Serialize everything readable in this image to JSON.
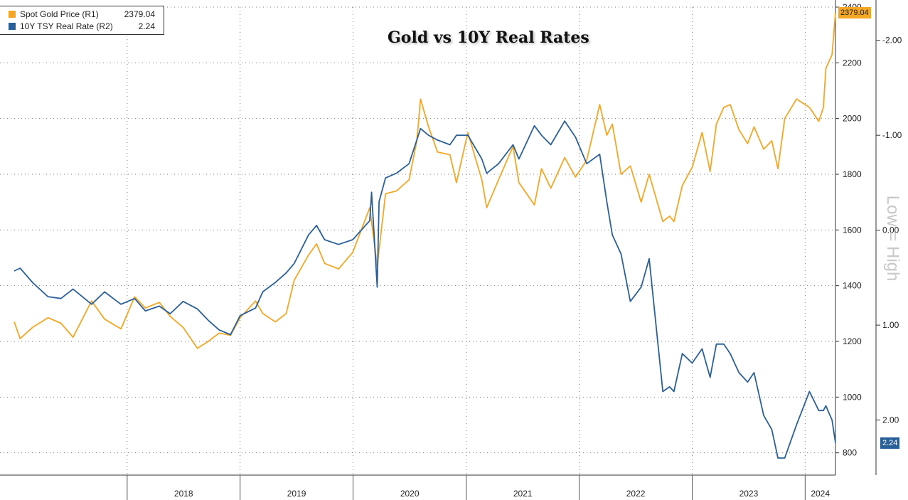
{
  "chart_data": {
    "type": "line",
    "title": "Gold vs 10Y Real Rates",
    "annotation": "Low = High",
    "x_range": [
      "2017-01-01",
      "2024-04-08"
    ],
    "x_tick_labels": [
      "2018",
      "2019",
      "2020",
      "2021",
      "2022",
      "2023",
      "2024"
    ],
    "grid": true,
    "legend_position": "top-left",
    "axes": {
      "r1": {
        "series": "Spot Gold Price (R1)",
        "range": [
          720,
          2400
        ],
        "ticks": [
          800,
          1000,
          1200,
          1400,
          1600,
          1800,
          2000,
          2200,
          2400
        ],
        "tick_labels": [
          "800",
          "1000",
          "1200",
          "1400",
          "1600",
          "1800",
          "2000",
          "2200",
          "2400"
        ]
      },
      "r2": {
        "series": "10Y TSY Real Rate (R2)",
        "inverted": true,
        "range": [
          -2.35,
          2.58
        ],
        "ticks": [
          -2.0,
          -1.0,
          0.0,
          1.0,
          2.0
        ],
        "tick_labels": [
          "-2.00",
          "-1.00",
          "0.00",
          "1.00",
          "2.00"
        ]
      }
    },
    "series": [
      {
        "name": "Spot Gold Price (R1)",
        "axis": "r1",
        "color": "#f5a623",
        "last_value": "2379.04",
        "points": [
          [
            "2017-01-01",
            1270
          ],
          [
            "2017-01-20",
            1210
          ],
          [
            "2017-03-01",
            1250
          ],
          [
            "2017-04-20",
            1285
          ],
          [
            "2017-06-01",
            1265
          ],
          [
            "2017-07-10",
            1215
          ],
          [
            "2017-09-08",
            1345
          ],
          [
            "2017-10-20",
            1280
          ],
          [
            "2017-12-12",
            1245
          ],
          [
            "2018-01-25",
            1360
          ],
          [
            "2018-03-01",
            1320
          ],
          [
            "2018-04-15",
            1340
          ],
          [
            "2018-05-20",
            1290
          ],
          [
            "2018-07-01",
            1250
          ],
          [
            "2018-08-16",
            1175
          ],
          [
            "2018-09-20",
            1200
          ],
          [
            "2018-10-25",
            1230
          ],
          [
            "2018-12-01",
            1222
          ],
          [
            "2019-01-01",
            1285
          ],
          [
            "2019-02-20",
            1345
          ],
          [
            "2019-03-15",
            1300
          ],
          [
            "2019-04-25",
            1270
          ],
          [
            "2019-05-30",
            1300
          ],
          [
            "2019-06-25",
            1420
          ],
          [
            "2019-08-10",
            1510
          ],
          [
            "2019-09-05",
            1550
          ],
          [
            "2019-10-01",
            1480
          ],
          [
            "2019-11-15",
            1460
          ],
          [
            "2019-12-31",
            1520
          ],
          [
            "2020-02-24",
            1680
          ],
          [
            "2020-03-19",
            1470
          ],
          [
            "2020-04-15",
            1730
          ],
          [
            "2020-05-20",
            1740
          ],
          [
            "2020-06-30",
            1780
          ],
          [
            "2020-07-25",
            1920
          ],
          [
            "2020-08-06",
            2070
          ],
          [
            "2020-09-01",
            1970
          ],
          [
            "2020-09-30",
            1880
          ],
          [
            "2020-11-09",
            1870
          ],
          [
            "2020-11-30",
            1770
          ],
          [
            "2021-01-06",
            1950
          ],
          [
            "2021-02-20",
            1780
          ],
          [
            "2021-03-08",
            1680
          ],
          [
            "2021-04-15",
            1780
          ],
          [
            "2021-06-01",
            1900
          ],
          [
            "2021-06-20",
            1770
          ],
          [
            "2021-08-09",
            1690
          ],
          [
            "2021-09-01",
            1820
          ],
          [
            "2021-10-01",
            1750
          ],
          [
            "2021-11-15",
            1860
          ],
          [
            "2021-12-20",
            1790
          ],
          [
            "2022-01-25",
            1850
          ],
          [
            "2022-03-08",
            2050
          ],
          [
            "2022-03-31",
            1940
          ],
          [
            "2022-04-18",
            1980
          ],
          [
            "2022-05-16",
            1800
          ],
          [
            "2022-06-15",
            1830
          ],
          [
            "2022-07-20",
            1700
          ],
          [
            "2022-08-15",
            1800
          ],
          [
            "2022-09-28",
            1630
          ],
          [
            "2022-10-20",
            1650
          ],
          [
            "2022-11-03",
            1630
          ],
          [
            "2022-11-30",
            1760
          ],
          [
            "2023-01-01",
            1825
          ],
          [
            "2023-02-02",
            1950
          ],
          [
            "2023-02-28",
            1810
          ],
          [
            "2023-03-20",
            1980
          ],
          [
            "2023-04-13",
            2040
          ],
          [
            "2023-05-04",
            2050
          ],
          [
            "2023-06-01",
            1960
          ],
          [
            "2023-06-29",
            1910
          ],
          [
            "2023-07-20",
            1970
          ],
          [
            "2023-08-20",
            1890
          ],
          [
            "2023-09-15",
            1920
          ],
          [
            "2023-10-05",
            1820
          ],
          [
            "2023-10-27",
            2000
          ],
          [
            "2023-12-04",
            2070
          ],
          [
            "2024-01-15",
            2040
          ],
          [
            "2024-02-14",
            1990
          ],
          [
            "2024-02-29",
            2040
          ],
          [
            "2024-03-08",
            2180
          ],
          [
            "2024-03-28",
            2230
          ],
          [
            "2024-04-08",
            2379
          ]
        ]
      },
      {
        "name": "10Y TSY Real Rate (R2)",
        "axis": "r2",
        "color": "#2a6099",
        "last_value": "2.24",
        "points": [
          [
            "2017-01-01",
            0.43
          ],
          [
            "2017-01-20",
            0.4
          ],
          [
            "2017-03-01",
            0.55
          ],
          [
            "2017-04-20",
            0.7
          ],
          [
            "2017-06-01",
            0.72
          ],
          [
            "2017-07-10",
            0.62
          ],
          [
            "2017-09-08",
            0.78
          ],
          [
            "2017-10-20",
            0.65
          ],
          [
            "2017-12-12",
            0.78
          ],
          [
            "2018-01-25",
            0.72
          ],
          [
            "2018-03-01",
            0.85
          ],
          [
            "2018-04-15",
            0.8
          ],
          [
            "2018-05-20",
            0.88
          ],
          [
            "2018-07-01",
            0.75
          ],
          [
            "2018-08-16",
            0.83
          ],
          [
            "2018-09-20",
            0.95
          ],
          [
            "2018-10-25",
            1.05
          ],
          [
            "2018-12-01",
            1.1
          ],
          [
            "2019-01-01",
            0.9
          ],
          [
            "2019-02-20",
            0.82
          ],
          [
            "2019-03-15",
            0.65
          ],
          [
            "2019-04-25",
            0.55
          ],
          [
            "2019-05-30",
            0.45
          ],
          [
            "2019-06-25",
            0.35
          ],
          [
            "2019-08-10",
            0.05
          ],
          [
            "2019-09-05",
            -0.05
          ],
          [
            "2019-10-01",
            0.1
          ],
          [
            "2019-11-15",
            0.15
          ],
          [
            "2019-12-31",
            0.1
          ],
          [
            "2020-02-24",
            -0.1
          ],
          [
            "2020-03-01",
            -0.4
          ],
          [
            "2020-03-19",
            0.6
          ],
          [
            "2020-03-25",
            -0.3
          ],
          [
            "2020-04-15",
            -0.55
          ],
          [
            "2020-05-20",
            -0.6
          ],
          [
            "2020-06-30",
            -0.7
          ],
          [
            "2020-07-25",
            -0.95
          ],
          [
            "2020-08-06",
            -1.07
          ],
          [
            "2020-09-01",
            -1.0
          ],
          [
            "2020-09-30",
            -0.95
          ],
          [
            "2020-11-09",
            -0.9
          ],
          [
            "2020-11-30",
            -1.0
          ],
          [
            "2021-01-06",
            -1.0
          ],
          [
            "2021-02-20",
            -0.75
          ],
          [
            "2021-03-08",
            -0.6
          ],
          [
            "2021-04-15",
            -0.7
          ],
          [
            "2021-06-01",
            -0.9
          ],
          [
            "2021-06-20",
            -0.75
          ],
          [
            "2021-08-09",
            -1.1
          ],
          [
            "2021-09-01",
            -1.0
          ],
          [
            "2021-10-01",
            -0.9
          ],
          [
            "2021-11-15",
            -1.15
          ],
          [
            "2021-12-20",
            -0.98
          ],
          [
            "2022-01-25",
            -0.7
          ],
          [
            "2022-03-08",
            -0.8
          ],
          [
            "2022-03-31",
            -0.3
          ],
          [
            "2022-04-18",
            0.05
          ],
          [
            "2022-05-16",
            0.25
          ],
          [
            "2022-06-15",
            0.75
          ],
          [
            "2022-07-20",
            0.6
          ],
          [
            "2022-08-15",
            0.3
          ],
          [
            "2022-09-28",
            1.7
          ],
          [
            "2022-10-20",
            1.65
          ],
          [
            "2022-11-03",
            1.7
          ],
          [
            "2022-11-30",
            1.3
          ],
          [
            "2023-01-01",
            1.4
          ],
          [
            "2023-02-02",
            1.25
          ],
          [
            "2023-02-28",
            1.55
          ],
          [
            "2023-03-20",
            1.2
          ],
          [
            "2023-04-13",
            1.2
          ],
          [
            "2023-05-04",
            1.3
          ],
          [
            "2023-06-01",
            1.5
          ],
          [
            "2023-06-29",
            1.6
          ],
          [
            "2023-07-20",
            1.5
          ],
          [
            "2023-08-20",
            1.95
          ],
          [
            "2023-09-15",
            2.1
          ],
          [
            "2023-10-05",
            2.4
          ],
          [
            "2023-10-27",
            2.4
          ],
          [
            "2023-12-04",
            2.05
          ],
          [
            "2024-01-15",
            1.7
          ],
          [
            "2024-02-14",
            1.9
          ],
          [
            "2024-02-29",
            1.9
          ],
          [
            "2024-03-08",
            1.85
          ],
          [
            "2024-03-28",
            2.0
          ],
          [
            "2024-04-08",
            2.24
          ]
        ]
      }
    ]
  }
}
